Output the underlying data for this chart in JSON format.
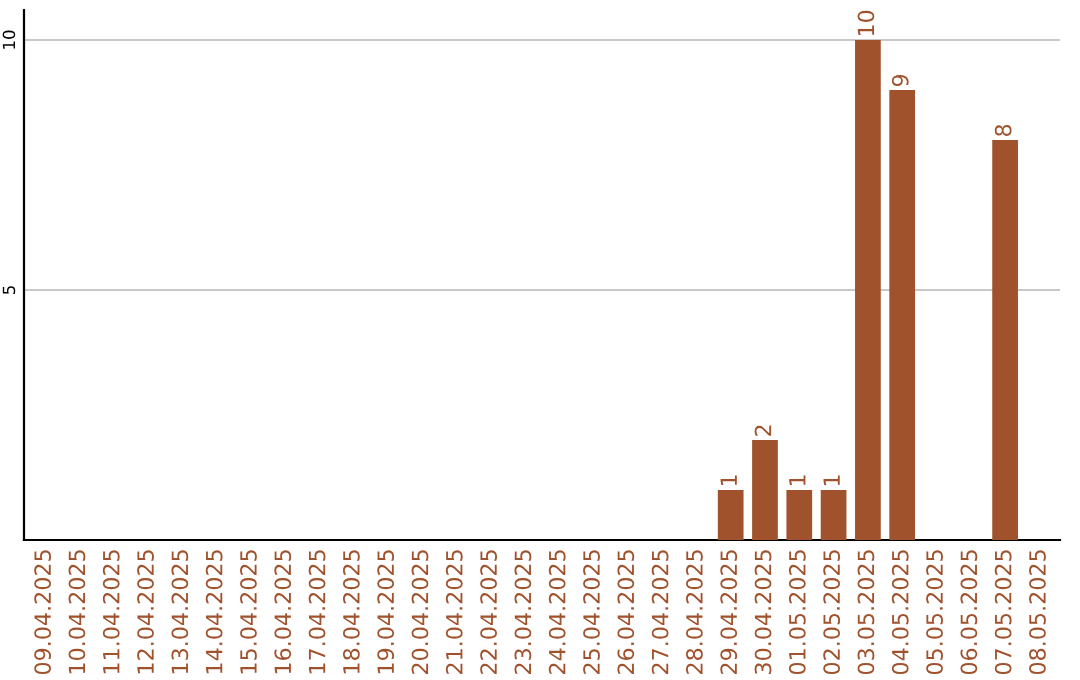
{
  "chart_data": {
    "type": "bar",
    "categories": [
      "09.04.2025",
      "10.04.2025",
      "11.04.2025",
      "12.04.2025",
      "13.04.2025",
      "14.04.2025",
      "15.04.2025",
      "16.04.2025",
      "17.04.2025",
      "18.04.2025",
      "19.04.2025",
      "20.04.2025",
      "21.04.2025",
      "22.04.2025",
      "23.04.2025",
      "24.04.2025",
      "25.04.2025",
      "26.04.2025",
      "27.04.2025",
      "28.04.2025",
      "29.04.2025",
      "30.04.2025",
      "01.05.2025",
      "02.05.2025",
      "03.05.2025",
      "04.05.2025",
      "05.05.2025",
      "06.05.2025",
      "07.05.2025",
      "08.05.2025"
    ],
    "values": [
      0,
      0,
      0,
      0,
      0,
      0,
      0,
      0,
      0,
      0,
      0,
      0,
      0,
      0,
      0,
      0,
      0,
      0,
      0,
      0,
      1,
      2,
      1,
      1,
      10,
      9,
      0,
      0,
      8,
      0
    ],
    "value_labels": [
      null,
      null,
      null,
      null,
      null,
      null,
      null,
      null,
      null,
      null,
      null,
      null,
      null,
      null,
      null,
      null,
      null,
      null,
      null,
      null,
      "1",
      "2",
      "1",
      "1",
      "10",
      "9",
      null,
      null,
      "8",
      null
    ],
    "color": "#a0522d",
    "ylim": [
      0,
      10.6
    ],
    "yticks": [
      5,
      10
    ],
    "grid": "y"
  }
}
